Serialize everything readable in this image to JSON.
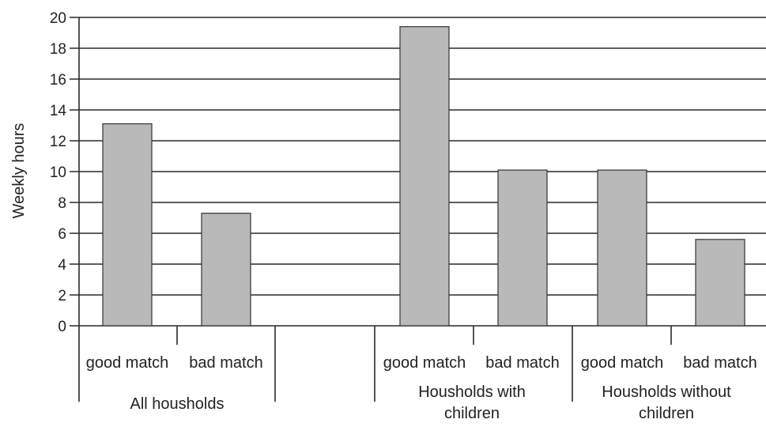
{
  "chart_data": {
    "type": "bar",
    "ylabel": "Weekly hours",
    "ylim": [
      0,
      20
    ],
    "yticks": [
      0,
      2,
      4,
      6,
      8,
      10,
      12,
      14,
      16,
      18,
      20
    ],
    "grid": true,
    "bar_color": "#b9b9b9",
    "groups": [
      {
        "label_lines": [
          "All housholds"
        ],
        "categories": [
          "good match",
          "bad match"
        ],
        "values": [
          13.1,
          7.3
        ]
      },
      {
        "label_lines": [
          "Housholds with",
          "children"
        ],
        "categories": [
          "good match",
          "bad match"
        ],
        "values": [
          19.4,
          10.1
        ]
      },
      {
        "label_lines": [
          "Housholds without",
          "children"
        ],
        "categories": [
          "good match",
          "bad match"
        ],
        "values": [
          10.1,
          5.6
        ]
      }
    ]
  }
}
